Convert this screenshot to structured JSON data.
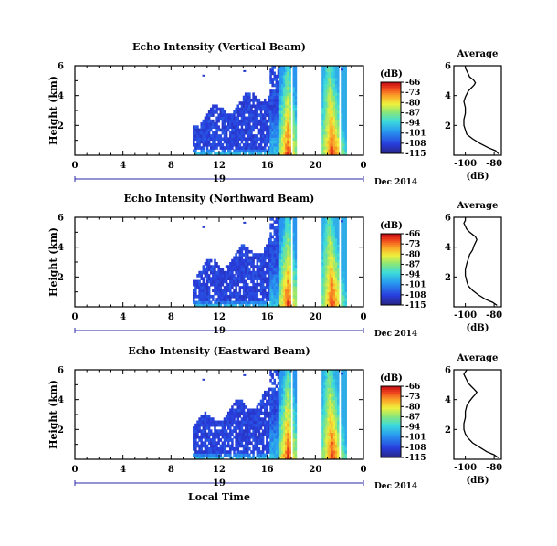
{
  "colorbar": {
    "unit_label": "(dB)",
    "ticks": [
      "-66",
      "-73",
      "-80",
      "-87",
      "-94",
      "-101",
      "-108",
      "-115"
    ],
    "min": -115,
    "max": -66
  },
  "time_axis": {
    "hour_ticks": [
      "0",
      "4",
      "8",
      "12",
      "16",
      "20",
      "0"
    ],
    "day_label": "19",
    "month_label": "Dec 2014",
    "xlabel": "Local Time"
  },
  "chart_data": [
    {
      "type": "heatmap",
      "title": "Echo Intensity (Vertical Beam)",
      "ylabel": "Height (km)",
      "yticks": [
        "6",
        "4",
        "2"
      ],
      "ylim": [
        0,
        6
      ],
      "xlim": [
        0,
        24
      ],
      "z_unit": "dB",
      "z_range": [
        -115,
        -66
      ]
    },
    {
      "type": "line",
      "title": "Average",
      "xlabel": "(dB)",
      "xticks": [
        "-100",
        "-80"
      ],
      "yticks": [
        "6",
        "4",
        "2"
      ],
      "xlim": [
        -108,
        -75
      ],
      "ylim": [
        0,
        6
      ],
      "series": [
        {
          "x": [
            -77,
            -79,
            -84,
            -90,
            -95,
            -99,
            -100,
            -101,
            -101,
            -100,
            -100,
            -101,
            -100,
            -99,
            -98,
            -96,
            -95,
            -94,
            -93,
            -94,
            -95,
            -97,
            -98,
            -99,
            -100,
            -100
          ],
          "y": [
            0.1,
            0.3,
            0.5,
            0.8,
            1.1,
            1.4,
            1.7,
            2.0,
            2.4,
            2.8,
            3.2,
            3.6,
            3.9,
            4.1,
            4.3,
            4.5,
            4.6,
            4.7,
            4.85,
            5.0,
            5.1,
            5.25,
            5.45,
            5.65,
            5.85,
            6.0
          ]
        }
      ]
    },
    {
      "type": "heatmap",
      "title": "Echo Intensity (Northward Beam)",
      "ylabel": "Height (km)",
      "yticks": [
        "6",
        "4",
        "2"
      ],
      "ylim": [
        0,
        6
      ],
      "xlim": [
        0,
        24
      ],
      "z_unit": "dB",
      "z_range": [
        -115,
        -66
      ]
    },
    {
      "type": "line",
      "title": "Average",
      "xlabel": "(dB)",
      "xticks": [
        "-100",
        "-80"
      ],
      "yticks": [
        "6",
        "4",
        "2"
      ],
      "xlim": [
        -108,
        -75
      ],
      "ylim": [
        0,
        6
      ],
      "series": [
        {
          "x": [
            -78,
            -81,
            -86,
            -91,
            -95,
            -98,
            -99,
            -100,
            -100,
            -99,
            -98,
            -97,
            -95,
            -94,
            -93,
            -92,
            -93,
            -95,
            -97,
            -99,
            -100,
            -101,
            -100,
            -100
          ],
          "y": [
            0.1,
            0.3,
            0.5,
            0.8,
            1.1,
            1.4,
            1.7,
            2.1,
            2.5,
            2.9,
            3.2,
            3.5,
            3.8,
            4.1,
            4.3,
            4.5,
            4.7,
            4.85,
            5.0,
            5.2,
            5.4,
            5.6,
            5.8,
            6.0
          ]
        }
      ]
    },
    {
      "type": "heatmap",
      "title": "Echo Intensity (Eastward Beam)",
      "ylabel": "Height (km)",
      "yticks": [
        "6",
        "4",
        "2"
      ],
      "ylim": [
        0,
        6
      ],
      "xlim": [
        0,
        24
      ],
      "z_unit": "dB",
      "z_range": [
        -115,
        -66
      ]
    },
    {
      "type": "line",
      "title": "Average",
      "xlabel": "(dB)",
      "xticks": [
        "-100",
        "-80"
      ],
      "yticks": [
        "6",
        "4",
        "2"
      ],
      "xlim": [
        -108,
        -75
      ],
      "ylim": [
        0,
        6
      ],
      "series": [
        {
          "x": [
            -77,
            -80,
            -85,
            -90,
            -95,
            -98,
            -100,
            -101,
            -101,
            -100,
            -100,
            -99,
            -97,
            -95,
            -93,
            -92,
            -94,
            -96,
            -98,
            -99,
            -100,
            -101,
            -100,
            -99
          ],
          "y": [
            0.1,
            0.3,
            0.5,
            0.8,
            1.1,
            1.4,
            1.7,
            2.0,
            2.4,
            2.8,
            3.2,
            3.6,
            3.9,
            4.15,
            4.35,
            4.5,
            4.7,
            4.9,
            5.1,
            5.3,
            5.5,
            5.7,
            5.85,
            6.0
          ]
        }
      ]
    }
  ]
}
